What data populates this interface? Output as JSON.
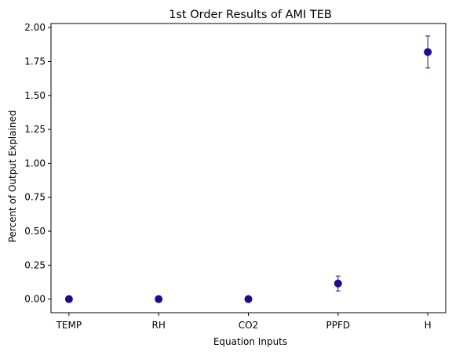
{
  "chart_data": {
    "type": "scatter",
    "title": "1st Order Results of AMI TEB",
    "xlabel": "Equation Inputs",
    "ylabel": "Percent of Output Explained",
    "categories": [
      "TEMP",
      "RH",
      "CO2",
      "PPFD",
      "H"
    ],
    "values": [
      0.0,
      0.0,
      0.0,
      0.115,
      1.82
    ],
    "error": [
      0.0,
      0.0,
      0.0,
      0.055,
      0.118
    ],
    "ylim": [
      -0.1,
      2.03
    ],
    "yticks": [
      0.0,
      0.25,
      0.5,
      0.75,
      1.0,
      1.25,
      1.5,
      1.75,
      2.0
    ],
    "ytick_labels": [
      "0.00",
      "0.25",
      "0.50",
      "0.75",
      "1.00",
      "1.25",
      "1.50",
      "1.75",
      "2.00"
    ],
    "grid": false,
    "marker_color": "#1f0c8c"
  }
}
